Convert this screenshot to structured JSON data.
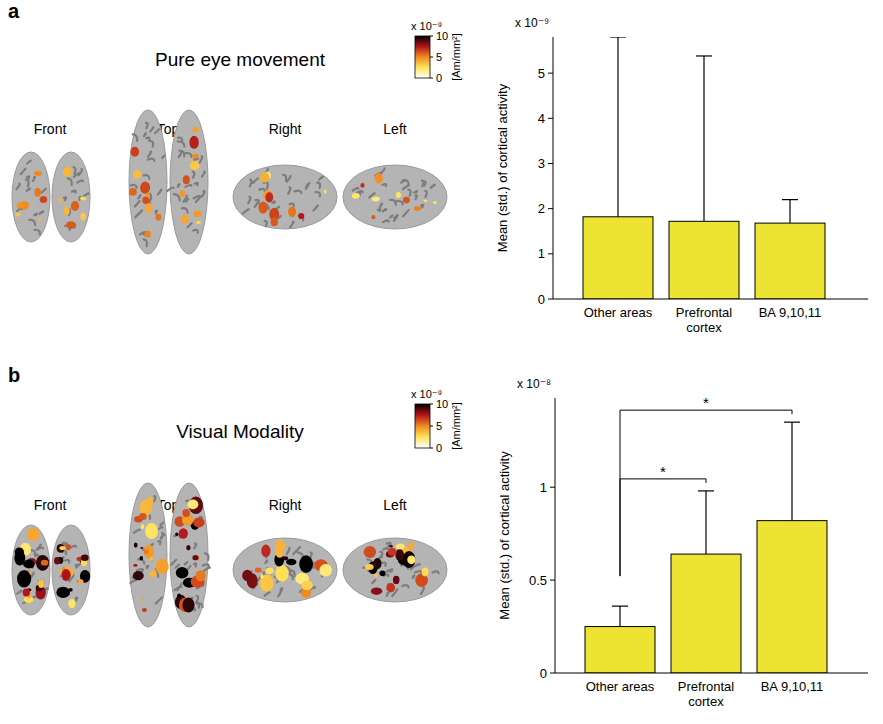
{
  "chart_data": [
    {
      "type": "bar",
      "panel": "a",
      "title": "Pure eye movement",
      "views": [
        "Front",
        "Top",
        "Right",
        "Left"
      ],
      "color_bar": {
        "range": [
          0,
          10
        ],
        "ticks": [
          0,
          5,
          10
        ],
        "scale_label": "x 10⁻⁹",
        "label": "[Am/mm²]"
      },
      "y_label": "Mean (std.) of cortical activity",
      "y_scale_label": "x 10⁻⁹",
      "categories": [
        "Other areas",
        "Prefrontal cortex",
        "BA 9,10,11"
      ],
      "values": [
        1.82,
        1.72,
        1.68
      ],
      "errors": [
        3.98,
        3.66,
        0.52
      ],
      "color": "#ede332",
      "ylim": [
        0,
        5.8
      ],
      "yticks": [
        0,
        1,
        2,
        3,
        4,
        5
      ],
      "grid": false
    },
    {
      "type": "bar",
      "panel": "b",
      "title": "Visual Modality",
      "views": [
        "Front",
        "Top",
        "Right",
        "Left"
      ],
      "color_bar": {
        "range": [
          0,
          10
        ],
        "ticks": [
          0,
          5,
          10
        ],
        "scale_label": "x 10⁻⁹",
        "label": "[Am/mm²]"
      },
      "y_label": "Mean (std.) of cortical activity",
      "y_scale_label": "x 10⁻⁸",
      "categories": [
        "Other areas",
        "Prefrontal cortex",
        "BA 9,10,11"
      ],
      "values": [
        0.25,
        0.64,
        0.82
      ],
      "errors": [
        0.11,
        0.34,
        0.53
      ],
      "color": "#ede332",
      "ylim": [
        0,
        1.48
      ],
      "yticks": [
        0,
        0.5,
        1
      ],
      "grid": false,
      "significance": [
        {
          "pair": [
            0,
            1
          ],
          "label": "*"
        },
        {
          "pair": [
            0,
            2
          ],
          "label": "*"
        }
      ]
    }
  ]
}
